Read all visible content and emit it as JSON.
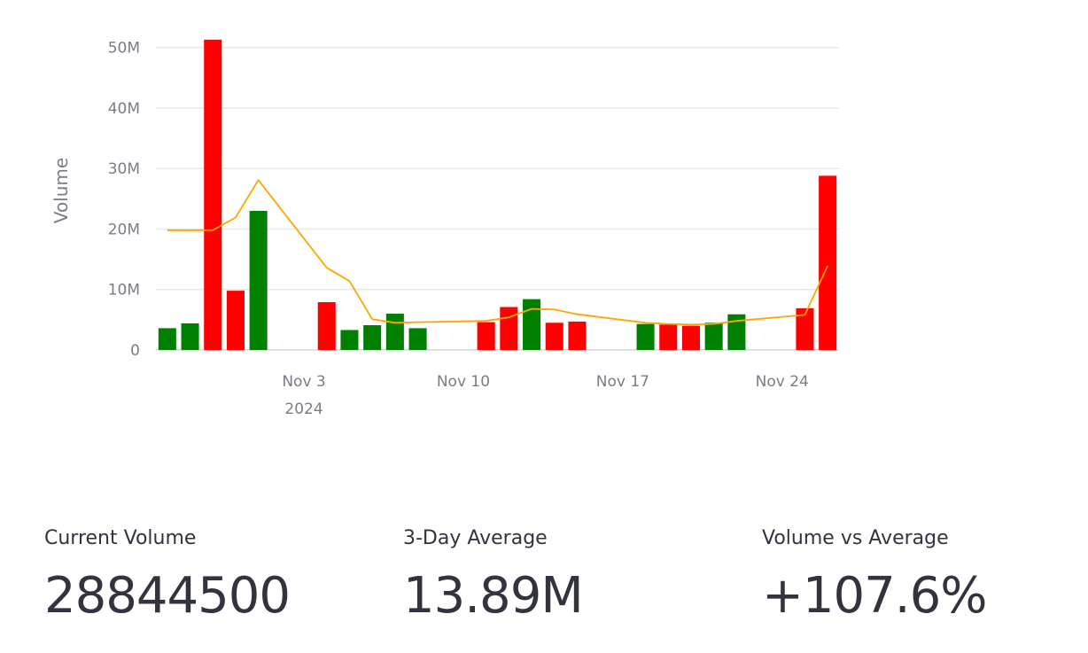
{
  "chart_data": {
    "type": "bar",
    "title": "",
    "xlabel": "",
    "ylabel": "Volume",
    "ylim": [
      0,
      52000000
    ],
    "yticks": [
      {
        "value": 0,
        "label": "0"
      },
      {
        "value": 10000000,
        "label": "10M"
      },
      {
        "value": 20000000,
        "label": "20M"
      },
      {
        "value": 30000000,
        "label": "30M"
      },
      {
        "value": 40000000,
        "label": "40M"
      },
      {
        "value": 50000000,
        "label": "50M"
      }
    ],
    "xticks": [
      {
        "date": "2024-11-03",
        "label": "Nov 3",
        "sublabel": "2024"
      },
      {
        "date": "2024-11-10",
        "label": "Nov 10",
        "sublabel": ""
      },
      {
        "date": "2024-11-17",
        "label": "Nov 17",
        "sublabel": ""
      },
      {
        "date": "2024-11-24",
        "label": "Nov 24",
        "sublabel": ""
      }
    ],
    "xrange": [
      "2024-10-28",
      "2024-11-27"
    ],
    "grid": true,
    "legend": false,
    "colors": {
      "up": "#008000",
      "down": "#ff0000",
      "average": "#ffa500"
    },
    "series": [
      {
        "type": "bar",
        "points": [
          {
            "date": "2024-10-28",
            "volume": 3600000,
            "direction": "up"
          },
          {
            "date": "2024-10-29",
            "volume": 4400000,
            "direction": "up"
          },
          {
            "date": "2024-10-30",
            "volume": 51300000,
            "direction": "down"
          },
          {
            "date": "2024-10-31",
            "volume": 9800000,
            "direction": "down"
          },
          {
            "date": "2024-11-01",
            "volume": 23000000,
            "direction": "up"
          },
          {
            "date": "2024-11-04",
            "volume": 7900000,
            "direction": "down"
          },
          {
            "date": "2024-11-05",
            "volume": 3300000,
            "direction": "up"
          },
          {
            "date": "2024-11-06",
            "volume": 4100000,
            "direction": "up"
          },
          {
            "date": "2024-11-07",
            "volume": 6000000,
            "direction": "up"
          },
          {
            "date": "2024-11-08",
            "volume": 3600000,
            "direction": "up"
          },
          {
            "date": "2024-11-11",
            "volume": 4600000,
            "direction": "down"
          },
          {
            "date": "2024-11-12",
            "volume": 7100000,
            "direction": "down"
          },
          {
            "date": "2024-11-13",
            "volume": 8400000,
            "direction": "up"
          },
          {
            "date": "2024-11-14",
            "volume": 4500000,
            "direction": "down"
          },
          {
            "date": "2024-11-15",
            "volume": 4700000,
            "direction": "down"
          },
          {
            "date": "2024-11-18",
            "volume": 4300000,
            "direction": "up"
          },
          {
            "date": "2024-11-19",
            "volume": 4200000,
            "direction": "down"
          },
          {
            "date": "2024-11-20",
            "volume": 4000000,
            "direction": "down"
          },
          {
            "date": "2024-11-21",
            "volume": 4500000,
            "direction": "up"
          },
          {
            "date": "2024-11-22",
            "volume": 5900000,
            "direction": "up"
          },
          {
            "date": "2024-11-25",
            "volume": 6900000,
            "direction": "down"
          },
          {
            "date": "2024-11-26",
            "volume": 28800000,
            "direction": "down"
          }
        ]
      },
      {
        "type": "line",
        "points": [
          {
            "date": "2024-10-28",
            "value": 19800000
          },
          {
            "date": "2024-10-29",
            "value": 19800000
          },
          {
            "date": "2024-10-30",
            "value": 19800000
          },
          {
            "date": "2024-10-31",
            "value": 21900000
          },
          {
            "date": "2024-11-01",
            "value": 28100000
          },
          {
            "date": "2024-11-04",
            "value": 13600000
          },
          {
            "date": "2024-11-05",
            "value": 11400000
          },
          {
            "date": "2024-11-06",
            "value": 5100000
          },
          {
            "date": "2024-11-07",
            "value": 4500000
          },
          {
            "date": "2024-11-08",
            "value": 4600000
          },
          {
            "date": "2024-11-11",
            "value": 4800000
          },
          {
            "date": "2024-11-12",
            "value": 5400000
          },
          {
            "date": "2024-11-13",
            "value": 6800000
          },
          {
            "date": "2024-11-14",
            "value": 6700000
          },
          {
            "date": "2024-11-15",
            "value": 5900000
          },
          {
            "date": "2024-11-18",
            "value": 4500000
          },
          {
            "date": "2024-11-19",
            "value": 4300000
          },
          {
            "date": "2024-11-20",
            "value": 4200000
          },
          {
            "date": "2024-11-21",
            "value": 4300000
          },
          {
            "date": "2024-11-22",
            "value": 4800000
          },
          {
            "date": "2024-11-25",
            "value": 5800000
          },
          {
            "date": "2024-11-26",
            "value": 13900000
          }
        ]
      }
    ]
  },
  "metrics": [
    {
      "label": "Current Volume",
      "value": "28844500"
    },
    {
      "label": "3-Day Average",
      "value": "13.89M"
    },
    {
      "label": "Volume vs Average",
      "value": "+107.6%"
    }
  ]
}
